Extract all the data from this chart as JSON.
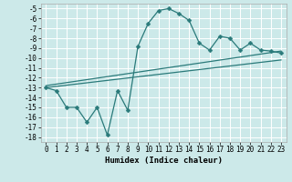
{
  "xlabel": "Humidex (Indice chaleur)",
  "bg_color": "#cce9e9",
  "grid_color": "#ffffff",
  "line_color": "#2a7a7a",
  "marker": "D",
  "markersize": 2.5,
  "linewidth": 0.9,
  "xlim": [
    -0.5,
    23.5
  ],
  "ylim": [
    -18.5,
    -4.5
  ],
  "xticks": [
    0,
    1,
    2,
    3,
    4,
    5,
    6,
    7,
    8,
    9,
    10,
    11,
    12,
    13,
    14,
    15,
    16,
    17,
    18,
    19,
    20,
    21,
    22,
    23
  ],
  "yticks": [
    -18,
    -17,
    -16,
    -15,
    -14,
    -13,
    -12,
    -11,
    -10,
    -9,
    -8,
    -7,
    -6,
    -5
  ],
  "curve1_x": [
    0,
    1,
    2,
    3,
    4,
    5,
    6,
    7,
    8,
    9,
    10,
    11,
    12,
    13,
    14,
    15,
    16,
    17,
    18,
    19,
    20,
    21,
    22,
    23
  ],
  "curve1_y": [
    -13.0,
    -13.3,
    -15.0,
    -15.0,
    -16.5,
    -15.0,
    -17.8,
    -13.3,
    -15.3,
    -8.8,
    -6.5,
    -5.2,
    -5.0,
    -5.5,
    -6.2,
    -8.5,
    -9.2,
    -7.8,
    -8.0,
    -9.2,
    -8.5,
    -9.2,
    -9.3,
    -9.5
  ],
  "trend1_x": [
    0,
    23
  ],
  "trend1_y": [
    -12.8,
    -9.3
  ],
  "trend2_x": [
    0,
    23
  ],
  "trend2_y": [
    -13.0,
    -10.2
  ],
  "tick_fontsize": 5.5,
  "xlabel_fontsize": 6.5
}
